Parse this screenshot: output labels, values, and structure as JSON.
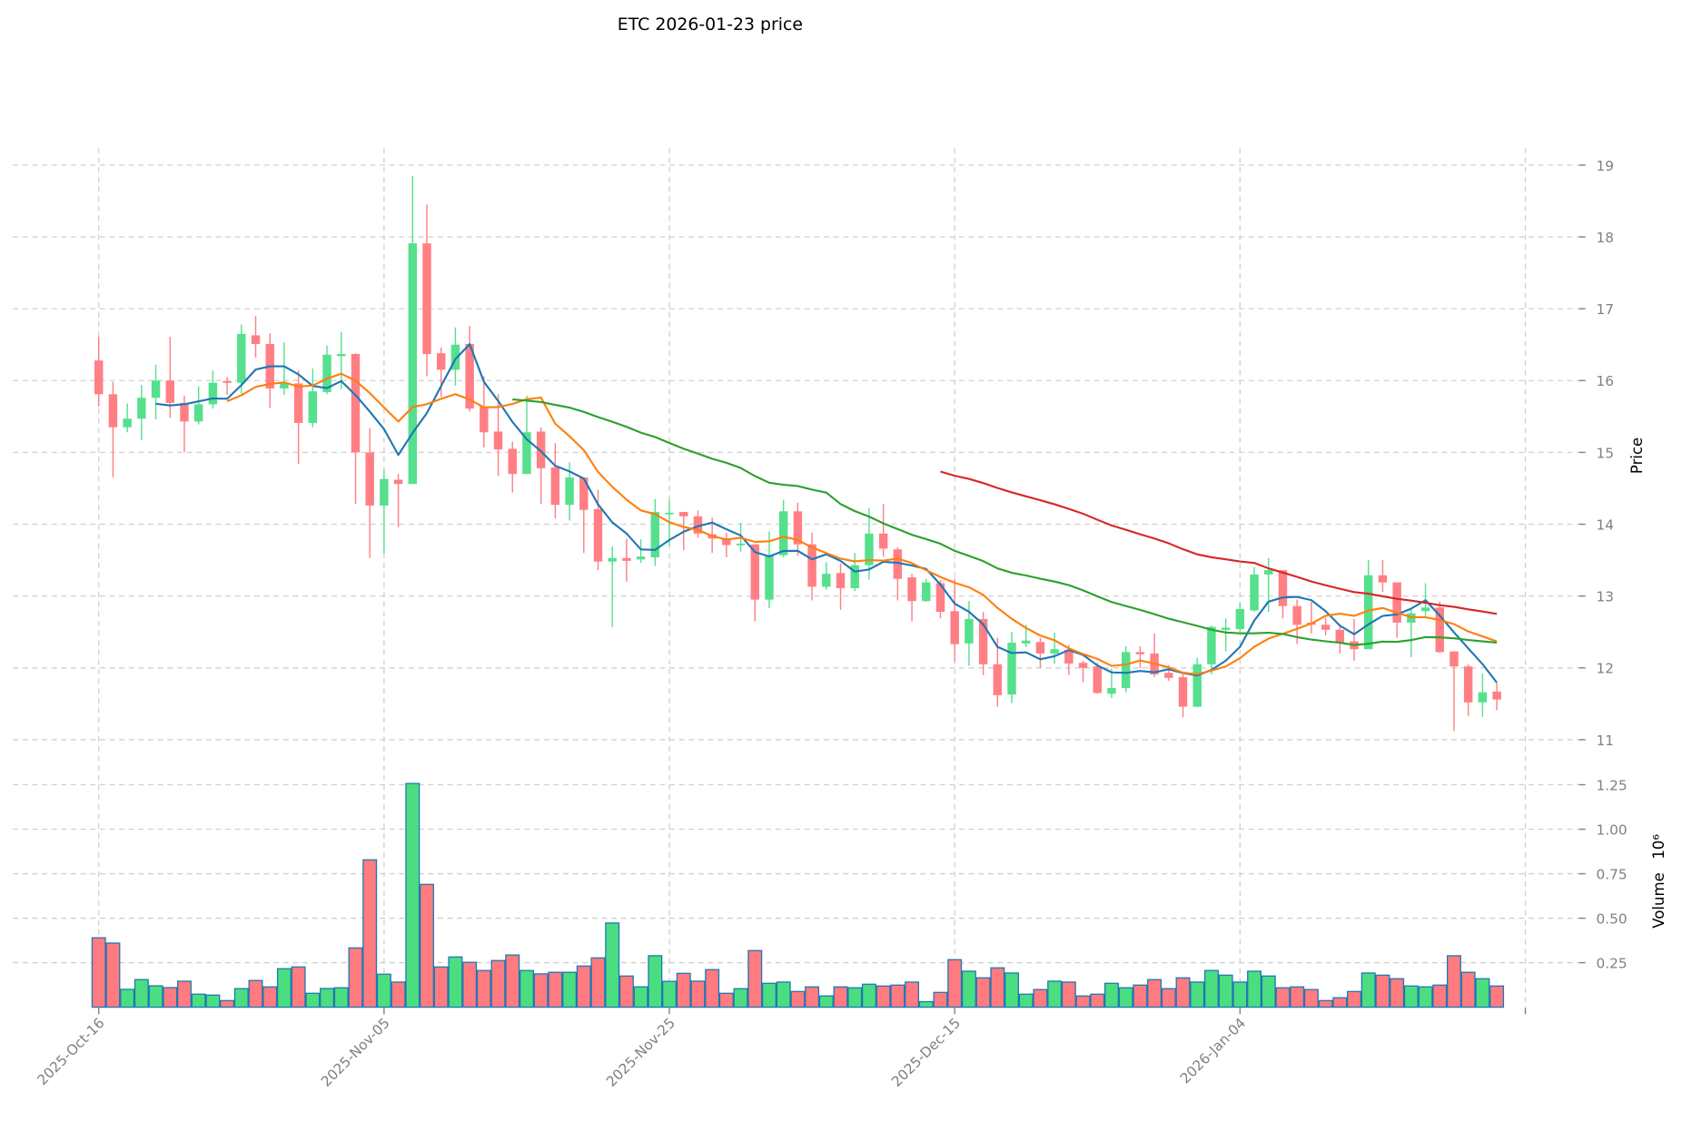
{
  "chart_data": {
    "type": "candlestick",
    "title": "ETC  2026-01-23  price",
    "price_axis": {
      "label": "Price",
      "ticks": [
        11,
        12,
        13,
        14,
        15,
        16,
        17,
        18,
        19
      ],
      "ylim": [
        11,
        19
      ]
    },
    "volume_axis": {
      "label": "Volume",
      "multiplier": "10⁶",
      "ticks": [
        "0.25",
        "0.50",
        "0.75",
        "1.00",
        "1.25"
      ],
      "tick_values": [
        0.25,
        0.5,
        0.75,
        1.0,
        1.25
      ],
      "ylim": [
        0,
        1.25
      ]
    },
    "x_ticks": [
      {
        "label": "2025-Oct-16",
        "index": 0
      },
      {
        "label": "2025-Nov-05",
        "index": 20
      },
      {
        "label": "2025-Nov-25",
        "index": 40
      },
      {
        "label": "2025-Dec-15",
        "index": 60
      },
      {
        "label": "2026-Jan-04",
        "index": 80
      }
    ],
    "x_extra_grid_index": 100,
    "grid": true,
    "colors": {
      "up": "#56e08d",
      "down": "#ff7f85",
      "volume_edge": "#1f77b4",
      "grid": "#d0d0d0"
    },
    "moving_averages": [
      {
        "window": 5,
        "color": "#1f77b4"
      },
      {
        "window": 10,
        "color": "#ff7f0e"
      },
      {
        "window": 30,
        "color": "#2ca02c"
      },
      {
        "window": 60,
        "color": "#d62728"
      }
    ],
    "open": [
      16.28,
      15.81,
      15.35,
      15.47,
      15.76,
      16.0,
      15.69,
      15.43,
      15.67,
      15.99,
      15.97,
      16.63,
      16.51,
      15.89,
      15.96,
      15.41,
      15.84,
      16.34,
      16.37,
      15.0,
      14.26,
      14.62,
      14.56,
      17.91,
      16.38,
      16.15,
      16.51,
      15.64,
      15.29,
      15.05,
      14.7,
      15.29,
      14.79,
      14.27,
      14.65,
      14.21,
      13.48,
      13.53,
      13.51,
      13.54,
      14.14,
      14.17,
      14.11,
      13.86,
      13.8,
      13.71,
      13.72,
      12.95,
      13.57,
      14.18,
      13.72,
      13.13,
      13.32,
      13.11,
      13.43,
      13.87,
      13.65,
      13.26,
      12.93,
      13.18,
      12.79,
      12.34,
      12.68,
      12.05,
      11.63,
      12.34,
      12.36,
      12.2,
      12.25,
      12.07,
      12.02,
      11.64,
      11.72,
      12.22,
      12.2,
      11.93,
      11.87,
      11.46,
      12.05,
      12.53,
      12.54,
      12.8,
      13.3,
      13.36,
      12.86,
      12.63,
      12.6,
      12.53,
      12.37,
      12.26,
      13.29,
      13.19,
      12.63,
      12.79,
      12.84,
      12.23,
      12.02,
      11.52,
      11.67
    ],
    "high": [
      16.61,
      15.98,
      15.68,
      15.94,
      16.22,
      16.61,
      15.79,
      15.92,
      16.14,
      16.05,
      16.78,
      16.9,
      16.66,
      16.53,
      16.14,
      16.17,
      16.49,
      16.68,
      16.38,
      15.34,
      14.75,
      14.7,
      18.85,
      18.45,
      16.46,
      16.74,
      16.76,
      16.06,
      15.81,
      15.15,
      15.79,
      15.35,
      15.13,
      14.86,
      14.65,
      14.48,
      13.69,
      13.8,
      13.79,
      14.35,
      14.33,
      14.17,
      14.19,
      14.09,
      13.88,
      14.02,
      13.72,
      13.9,
      14.34,
      14.3,
      13.88,
      13.47,
      13.45,
      13.6,
      14.22,
      14.28,
      13.68,
      13.31,
      13.24,
      13.22,
      13.24,
      12.93,
      12.78,
      12.42,
      12.5,
      12.6,
      12.42,
      12.49,
      12.32,
      12.1,
      12.07,
      11.99,
      12.3,
      12.3,
      12.48,
      12.04,
      11.91,
      12.14,
      12.59,
      12.69,
      12.91,
      13.4,
      13.53,
      13.36,
      12.95,
      12.92,
      12.7,
      12.58,
      12.68,
      13.5,
      13.5,
      13.19,
      12.84,
      13.18,
      12.92,
      12.23,
      12.05,
      11.92,
      11.79
    ],
    "low": [
      15.64,
      14.65,
      15.28,
      15.17,
      15.46,
      15.48,
      15.0,
      15.39,
      15.61,
      15.8,
      15.82,
      16.32,
      15.62,
      15.8,
      14.84,
      15.35,
      15.81,
      15.88,
      14.28,
      13.53,
      13.59,
      13.96,
      14.56,
      16.06,
      15.77,
      15.93,
      15.57,
      15.07,
      14.67,
      14.44,
      14.7,
      14.28,
      14.08,
      14.05,
      13.6,
      13.36,
      12.57,
      13.2,
      13.46,
      13.42,
      13.7,
      13.64,
      13.81,
      13.6,
      13.54,
      13.62,
      12.65,
      12.83,
      13.54,
      13.56,
      12.94,
      13.09,
      12.81,
      13.07,
      13.23,
      13.55,
      12.94,
      12.65,
      12.92,
      12.69,
      12.09,
      12.03,
      11.9,
      11.46,
      11.51,
      12.29,
      12.0,
      12.06,
      11.9,
      11.8,
      11.64,
      11.58,
      11.66,
      12.0,
      11.87,
      11.82,
      11.31,
      11.45,
      11.91,
      12.23,
      12.51,
      12.78,
      12.78,
      12.69,
      12.33,
      12.48,
      12.45,
      12.2,
      12.1,
      12.26,
      13.06,
      12.42,
      12.15,
      12.7,
      12.21,
      11.12,
      11.33,
      11.32,
      11.41
    ],
    "close": [
      15.81,
      15.35,
      15.47,
      15.76,
      16.0,
      15.69,
      15.43,
      15.67,
      15.97,
      15.97,
      16.65,
      16.51,
      15.89,
      15.97,
      15.41,
      15.85,
      16.36,
      16.37,
      15.0,
      14.26,
      14.63,
      14.56,
      17.91,
      16.37,
      16.15,
      16.5,
      15.61,
      15.28,
      15.04,
      14.7,
      15.28,
      14.78,
      14.27,
      14.65,
      14.2,
      13.48,
      13.53,
      13.49,
      13.55,
      14.17,
      14.16,
      14.11,
      13.87,
      13.8,
      13.71,
      13.73,
      12.95,
      13.57,
      14.18,
      13.72,
      13.13,
      13.31,
      13.11,
      13.43,
      13.87,
      13.66,
      13.24,
      12.93,
      13.19,
      12.78,
      12.33,
      12.68,
      12.05,
      11.62,
      12.35,
      12.38,
      12.2,
      12.26,
      12.06,
      12.0,
      11.65,
      11.72,
      12.22,
      12.19,
      11.91,
      11.86,
      11.46,
      12.05,
      12.57,
      12.56,
      12.82,
      13.3,
      13.36,
      12.86,
      12.6,
      12.6,
      12.53,
      12.35,
      12.26,
      13.29,
      13.19,
      12.63,
      12.76,
      12.84,
      12.22,
      12.02,
      11.52,
      11.66,
      11.56
    ],
    "volume": [
      0.39,
      0.36,
      0.1,
      0.155,
      0.12,
      0.11,
      0.146,
      0.073,
      0.068,
      0.037,
      0.104,
      0.15,
      0.114,
      0.216,
      0.226,
      0.078,
      0.105,
      0.109,
      0.333,
      0.828,
      0.185,
      0.141,
      1.257,
      0.69,
      0.226,
      0.282,
      0.252,
      0.206,
      0.262,
      0.293,
      0.206,
      0.187,
      0.196,
      0.196,
      0.231,
      0.277,
      0.473,
      0.175,
      0.114,
      0.289,
      0.145,
      0.19,
      0.146,
      0.211,
      0.078,
      0.104,
      0.318,
      0.134,
      0.141,
      0.088,
      0.114,
      0.063,
      0.114,
      0.109,
      0.129,
      0.119,
      0.124,
      0.141,
      0.031,
      0.083,
      0.267,
      0.202,
      0.165,
      0.221,
      0.192,
      0.073,
      0.099,
      0.146,
      0.141,
      0.063,
      0.073,
      0.134,
      0.109,
      0.124,
      0.155,
      0.104,
      0.165,
      0.141,
      0.206,
      0.18,
      0.141,
      0.202,
      0.175,
      0.109,
      0.114,
      0.099,
      0.037,
      0.053,
      0.088,
      0.192,
      0.18,
      0.16,
      0.119,
      0.114,
      0.124,
      0.289,
      0.196,
      0.16,
      0.119
    ]
  }
}
